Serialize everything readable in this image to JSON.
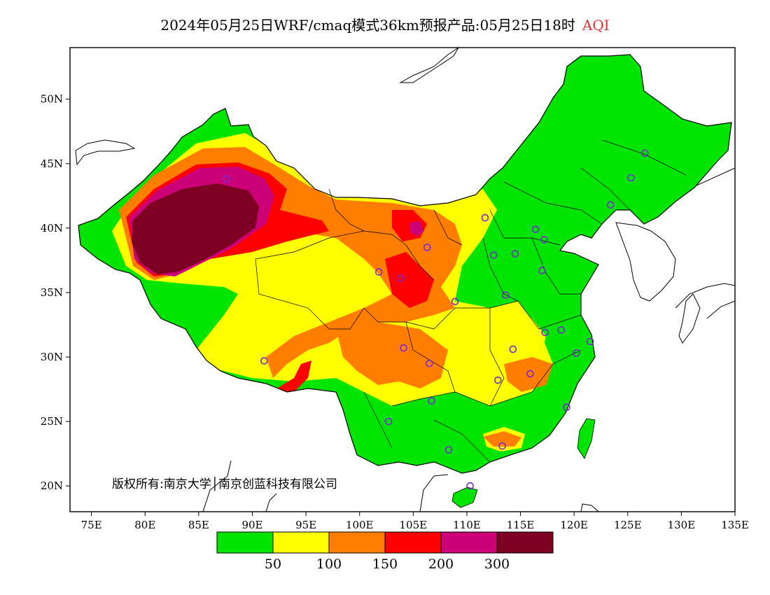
{
  "title": {
    "main": "2024年05月25日WRF/cmaq模式36km预报产品:05月25日18时",
    "variable": "AQI"
  },
  "map": {
    "lon_range": [
      73,
      135
    ],
    "lat_range": [
      18,
      54
    ],
    "lon_ticks": [
      {
        "value": 75,
        "label": "75E"
      },
      {
        "value": 80,
        "label": "80E"
      },
      {
        "value": 85,
        "label": "85E"
      },
      {
        "value": 90,
        "label": "90E"
      },
      {
        "value": 95,
        "label": "95E"
      },
      {
        "value": 100,
        "label": "100E"
      },
      {
        "value": 105,
        "label": "105E"
      },
      {
        "value": 110,
        "label": "110E"
      },
      {
        "value": 115,
        "label": "115E"
      },
      {
        "value": 120,
        "label": "120E"
      },
      {
        "value": 125,
        "label": "125E"
      },
      {
        "value": 130,
        "label": "130E"
      },
      {
        "value": 135,
        "label": "135E"
      }
    ],
    "lat_ticks": [
      {
        "value": 20,
        "label": "20N"
      },
      {
        "value": 25,
        "label": "25N"
      },
      {
        "value": 30,
        "label": "30N"
      },
      {
        "value": 35,
        "label": "35N"
      },
      {
        "value": 40,
        "label": "40N"
      },
      {
        "value": 45,
        "label": "45N"
      },
      {
        "value": 50,
        "label": "50N"
      }
    ],
    "copyright": "版权所有:南京大学│南京创蓝科技有限公司",
    "city_markers": [
      [
        87.6,
        43.8
      ],
      [
        91.1,
        29.7
      ],
      [
        101.8,
        36.6
      ],
      [
        103.8,
        36.1
      ],
      [
        106.3,
        38.5
      ],
      [
        111.7,
        40.8
      ],
      [
        112.5,
        37.9
      ],
      [
        114.5,
        38.0
      ],
      [
        116.4,
        39.9
      ],
      [
        117.2,
        39.1
      ],
      [
        117.0,
        36.7
      ],
      [
        113.6,
        34.8
      ],
      [
        108.9,
        34.3
      ],
      [
        104.1,
        30.7
      ],
      [
        106.5,
        29.5
      ],
      [
        106.7,
        26.6
      ],
      [
        102.7,
        25.0
      ],
      [
        108.3,
        22.8
      ],
      [
        113.3,
        23.1
      ],
      [
        110.3,
        20.0
      ],
      [
        112.9,
        28.2
      ],
      [
        114.3,
        30.6
      ],
      [
        115.9,
        28.7
      ],
      [
        117.3,
        31.9
      ],
      [
        118.8,
        32.1
      ],
      [
        120.2,
        30.3
      ],
      [
        121.5,
        31.2
      ],
      [
        119.3,
        26.1
      ],
      [
        123.4,
        41.8
      ],
      [
        125.3,
        43.9
      ],
      [
        126.6,
        45.8
      ]
    ]
  },
  "legend": {
    "colors": [
      "#00e400",
      "#ffff00",
      "#ff7e00",
      "#ff0000",
      "#cc0077",
      "#7e0023"
    ],
    "labels": [
      "50",
      "100",
      "150",
      "200",
      "300"
    ]
  }
}
